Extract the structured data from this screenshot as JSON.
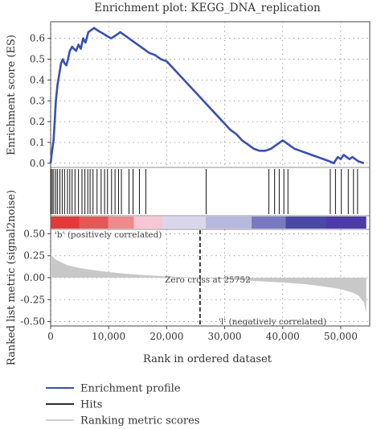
{
  "chart_data": {
    "type": "line",
    "title": "Enrichment plot: KEGG_DNA_replication",
    "xlabel": "Rank in ordered dataset",
    "xlim": [
      0,
      55000
    ],
    "x_ticks": [
      0,
      10000,
      20000,
      30000,
      40000,
      50000
    ],
    "x_tick_labels": [
      "0",
      "10,000",
      "20,000",
      "30,000",
      "40,000",
      "50,000"
    ],
    "grid": true,
    "top_panel": {
      "ylabel": "Enrichment score (ES)",
      "ylim": [
        -0.02,
        0.68
      ],
      "y_ticks": [
        0.0,
        0.1,
        0.2,
        0.3,
        0.4,
        0.5,
        0.6
      ],
      "y_tick_labels": [
        "0.0",
        "0.1",
        "0.2",
        "0.3",
        "0.4",
        "0.5",
        "0.6"
      ],
      "series": [
        {
          "name": "Enrichment profile",
          "color": "#3a4fb0",
          "x": [
            0,
            200,
            500,
            700,
            900,
            1200,
            1500,
            1800,
            2100,
            2400,
            2700,
            3000,
            3300,
            3700,
            4000,
            4400,
            4800,
            5200,
            5600,
            6000,
            6500,
            7000,
            7500,
            8000,
            8600,
            9200,
            9800,
            10400,
            11000,
            11500,
            12000,
            12500,
            13000,
            14000,
            15000,
            16000,
            17000,
            18000,
            19000,
            20000,
            21000,
            22000,
            23000,
            24000,
            25000,
            26000,
            27000,
            28000,
            29000,
            30000,
            31000,
            32000,
            33000,
            34000,
            35000,
            36000,
            37000,
            38000,
            39000,
            40000,
            40500,
            41000,
            42000,
            43000,
            44000,
            45000,
            46000,
            47000,
            48000,
            48800,
            49000,
            49500,
            50000,
            50500,
            51000,
            51500,
            52000,
            52500,
            53000,
            54000
          ],
          "values": [
            0.0,
            0.05,
            0.11,
            0.2,
            0.3,
            0.38,
            0.43,
            0.48,
            0.5,
            0.48,
            0.47,
            0.5,
            0.54,
            0.56,
            0.55,
            0.54,
            0.57,
            0.55,
            0.6,
            0.58,
            0.63,
            0.64,
            0.65,
            0.64,
            0.63,
            0.62,
            0.61,
            0.6,
            0.61,
            0.62,
            0.63,
            0.62,
            0.61,
            0.59,
            0.57,
            0.55,
            0.53,
            0.52,
            0.5,
            0.49,
            0.46,
            0.43,
            0.4,
            0.37,
            0.34,
            0.31,
            0.28,
            0.25,
            0.22,
            0.19,
            0.16,
            0.14,
            0.11,
            0.09,
            0.07,
            0.06,
            0.06,
            0.07,
            0.09,
            0.11,
            0.1,
            0.09,
            0.07,
            0.06,
            0.05,
            0.04,
            0.03,
            0.02,
            0.01,
            0.0,
            0.01,
            0.03,
            0.02,
            0.04,
            0.03,
            0.02,
            0.03,
            0.02,
            0.01,
            0.0
          ]
        }
      ]
    },
    "hits": {
      "name": "Hits",
      "color": "#111111",
      "positions": [
        80,
        300,
        550,
        900,
        1200,
        1600,
        2000,
        2400,
        2900,
        3300,
        3700,
        4200,
        4800,
        5400,
        5900,
        6400,
        6800,
        7300,
        8000,
        8700,
        9300,
        9800,
        10500,
        11100,
        11700,
        12200,
        13500,
        14200,
        15300,
        16400,
        26800,
        37600,
        38600,
        39400,
        40200,
        40900,
        48200,
        49100,
        50100,
        51300,
        52200,
        52900
      ]
    },
    "ranking_metric": {
      "name": "Ranking metric scores",
      "color": "#c8c8c8",
      "ylabel": "Ranked list metric (signal2noise)",
      "ylim": [
        -0.55,
        0.55
      ],
      "y_ticks": [
        0.5,
        0.25,
        0.0,
        -0.25,
        -0.5
      ],
      "y_tick_labels": [
        "0.50",
        "0.25",
        "0.00",
        "-0.25",
        "-0.50"
      ],
      "x": [
        0,
        500,
        1000,
        2000,
        3000,
        5000,
        8000,
        12000,
        16000,
        20000,
        24000,
        25752,
        28000,
        32000,
        36000,
        40000,
        44000,
        47000,
        50000,
        52000,
        53000,
        54000,
        54400
      ],
      "values": [
        0.27,
        0.23,
        0.2,
        0.17,
        0.14,
        0.11,
        0.08,
        0.05,
        0.03,
        0.015,
        0.005,
        0.0,
        -0.01,
        -0.025,
        -0.04,
        -0.055,
        -0.075,
        -0.1,
        -0.13,
        -0.17,
        -0.2,
        -0.28,
        -0.4
      ],
      "zero_cross": 25752,
      "zero_cross_label": "Zero cross at 25752",
      "pos_label": "'b' (positively correlated)",
      "neg_label": "'l' (negatively correlated)"
    },
    "heat_bar": {
      "colors": [
        "#e23a3a",
        "#e45858",
        "#ee8a8a",
        "#f7c6d4",
        "#d9d6ec",
        "#b7b8dd",
        "#7979c2",
        "#4a48a7",
        "#4c3ba8"
      ],
      "breaks": [
        0,
        5000,
        10000,
        14500,
        19500,
        27000,
        35000,
        41000,
        48000,
        54400,
        55000
      ]
    },
    "legend": {
      "position": "bottom-left",
      "entries": [
        {
          "label": "Enrichment profile",
          "color": "#3a4fb0"
        },
        {
          "label": "Hits",
          "color": "#111111"
        },
        {
          "label": "Ranking metric scores",
          "color": "#c8c8c8"
        }
      ]
    }
  }
}
